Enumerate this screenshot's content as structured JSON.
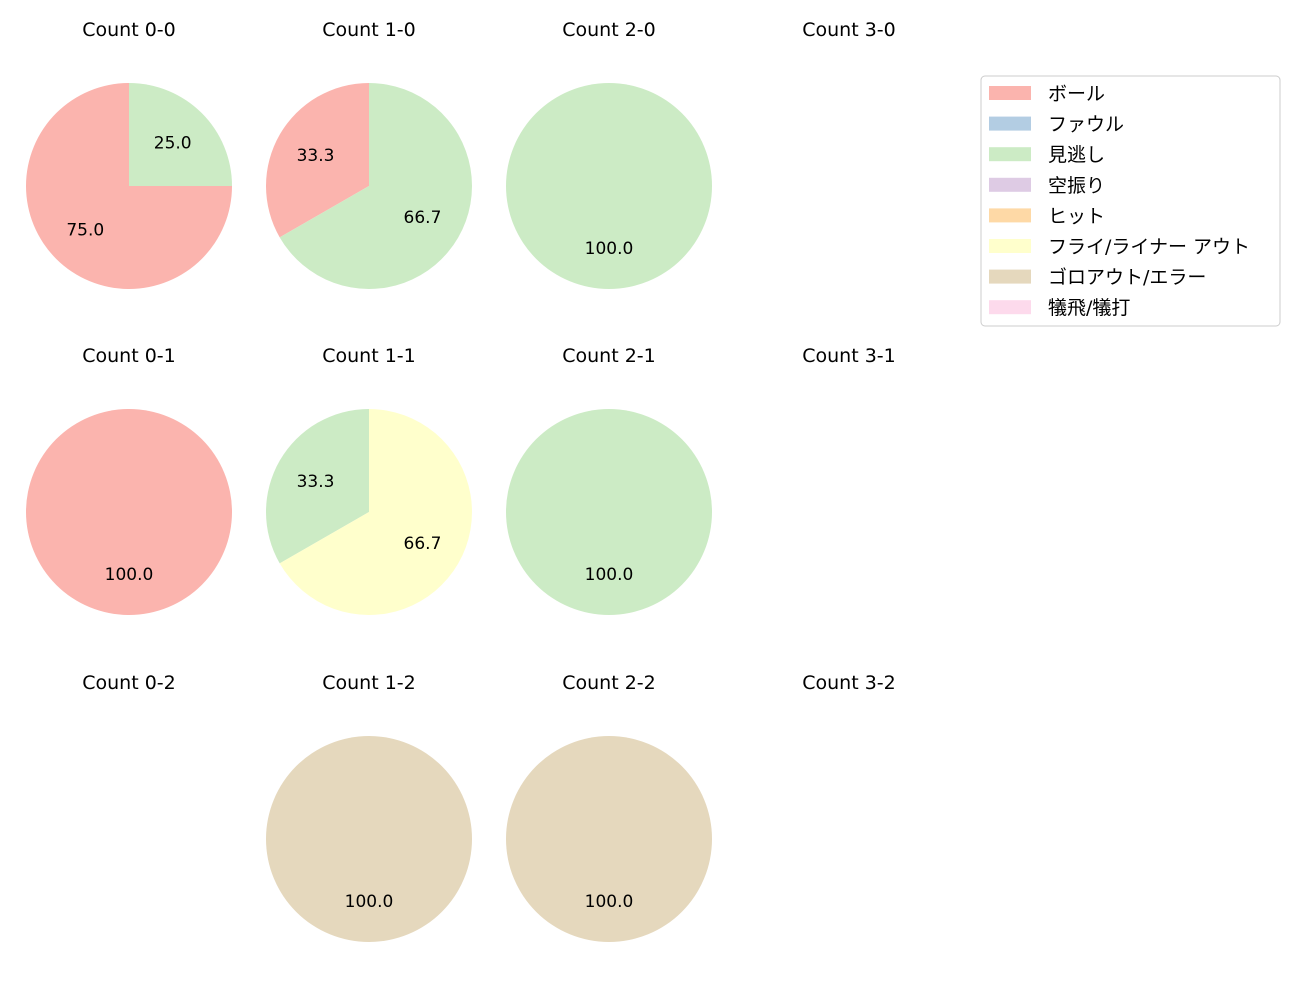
{
  "chart_data": {
    "type": "pie",
    "categories": [
      "ボール",
      "ファウル",
      "見逃し",
      "空振り",
      "ヒット",
      "フライ/ライナー アウト",
      "ゴロアウト/エラー",
      "犠飛/犠打"
    ],
    "colors": [
      "#fbb4ae",
      "#b3cde3",
      "#ccebc5",
      "#decbe4",
      "#fed9a6",
      "#ffffcc",
      "#e5d8bd",
      "#fddaec"
    ],
    "legend": {
      "position": "top-right",
      "entries": [
        "ボール",
        "ファウル",
        "見逃し",
        "空振り",
        "ヒット",
        "フライ/ライナー アウト",
        "ゴロアウト/エラー",
        "犠飛/犠打"
      ]
    },
    "panels": [
      {
        "title": "Count 0-0",
        "row": 0,
        "col": 0,
        "slices": [
          {
            "category": "ボール",
            "value": 75.0,
            "label": "75.0"
          },
          {
            "category": "見逃し",
            "value": 25.0,
            "label": "25.0"
          }
        ]
      },
      {
        "title": "Count 1-0",
        "row": 0,
        "col": 1,
        "slices": [
          {
            "category": "ボール",
            "value": 33.3,
            "label": "33.3"
          },
          {
            "category": "見逃し",
            "value": 66.7,
            "label": "66.7"
          }
        ]
      },
      {
        "title": "Count 2-0",
        "row": 0,
        "col": 2,
        "slices": [
          {
            "category": "見逃し",
            "value": 100.0,
            "label": "100.0"
          }
        ]
      },
      {
        "title": "Count 3-0",
        "row": 0,
        "col": 3,
        "slices": []
      },
      {
        "title": "Count 0-1",
        "row": 1,
        "col": 0,
        "slices": [
          {
            "category": "ボール",
            "value": 100.0,
            "label": "100.0"
          }
        ]
      },
      {
        "title": "Count 1-1",
        "row": 1,
        "col": 1,
        "slices": [
          {
            "category": "見逃し",
            "value": 33.3,
            "label": "33.3"
          },
          {
            "category": "フライ/ライナー アウト",
            "value": 66.7,
            "label": "66.7"
          }
        ]
      },
      {
        "title": "Count 2-1",
        "row": 1,
        "col": 2,
        "slices": [
          {
            "category": "見逃し",
            "value": 100.0,
            "label": "100.0"
          }
        ]
      },
      {
        "title": "Count 3-1",
        "row": 1,
        "col": 3,
        "slices": []
      },
      {
        "title": "Count 0-2",
        "row": 2,
        "col": 0,
        "slices": []
      },
      {
        "title": "Count 1-2",
        "row": 2,
        "col": 1,
        "slices": [
          {
            "category": "ゴロアウト/エラー",
            "value": 100.0,
            "label": "100.0"
          }
        ]
      },
      {
        "title": "Count 2-2",
        "row": 2,
        "col": 2,
        "slices": [
          {
            "category": "ゴロアウト/エラー",
            "value": 100.0,
            "label": "100.0"
          }
        ]
      },
      {
        "title": "Count 3-2",
        "row": 2,
        "col": 3,
        "slices": []
      }
    ]
  }
}
